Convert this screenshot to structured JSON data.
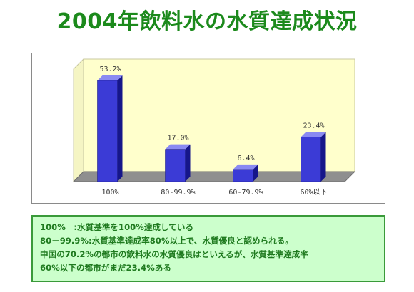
{
  "title": "2004年飲料水の水質達成状況",
  "colors": {
    "title": "#1c8a1c",
    "note_text": "#1f7a1f",
    "note_bg": "#ccffcc",
    "note_border": "#3a9a3a",
    "plot_wall": "#ffffcc",
    "floor": "#8f8f8f",
    "bar_front": "#3b3bd6",
    "bar_side": "#16168a",
    "bar_top": "#8a8af2",
    "label_text": "#333333"
  },
  "chart_data": {
    "type": "bar",
    "categories": [
      "100%",
      "80-99.9%",
      "60-79.9%",
      "60%以下"
    ],
    "values": [
      53.2,
      17.0,
      6.4,
      23.4
    ],
    "value_labels": [
      "53.2%",
      "17.0%",
      "6.4%",
      "23.4%"
    ],
    "title": "",
    "xlabel": "",
    "ylabel": "",
    "ylim": [
      0,
      53.2
    ],
    "grid": false,
    "legend": "none",
    "style": "3d"
  },
  "notes": [
    "100%　:水質基準を100%達成している",
    "80－99.9%:水質基準達成率80%以上で、水質優良と認められる。",
    "中国の70.2%の都市の飲料水の水質優良はといえるが、水質基準達成率",
    "60%以下の都市がまだ23.4%ある"
  ]
}
